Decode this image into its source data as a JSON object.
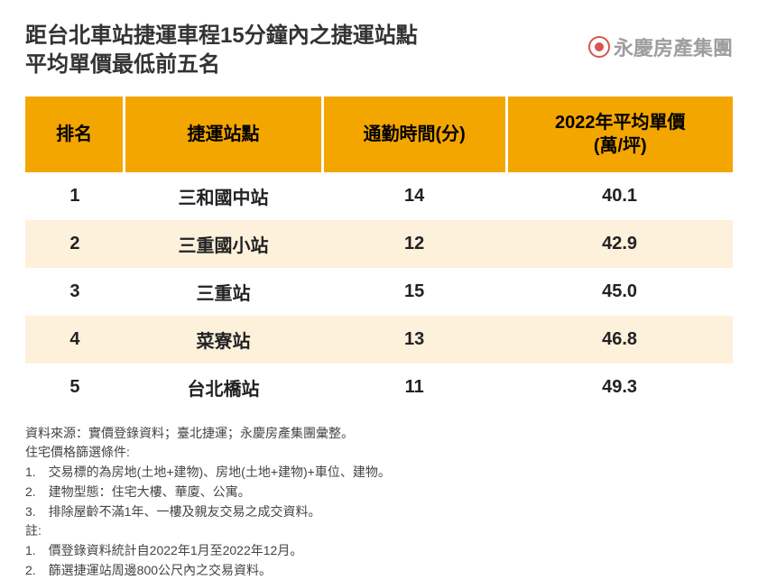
{
  "title_line1": "距台北車站捷運車程15分鐘內之捷運站點",
  "title_line2": "平均單價最低前五名",
  "brand_text": "永慶房產集團",
  "table": {
    "type": "table",
    "header_bg": "#f4a600",
    "even_row_bg": "#fdf1dc",
    "odd_row_bg": "#ffffff",
    "columns": [
      {
        "label": "排名",
        "width_pct": 14
      },
      {
        "label": "捷運站點",
        "width_pct": 28
      },
      {
        "label": "通勤時間(分)",
        "width_pct": 26
      },
      {
        "label": "2022年平均單價\n(萬/坪)",
        "width_pct": 32
      }
    ],
    "rows": [
      {
        "rank": "1",
        "station": "三和國中站",
        "commute": "14",
        "price": "40.1"
      },
      {
        "rank": "2",
        "station": "三重國小站",
        "commute": "12",
        "price": "42.9"
      },
      {
        "rank": "3",
        "station": "三重站",
        "commute": "15",
        "price": "45.0"
      },
      {
        "rank": "4",
        "station": "菜寮站",
        "commute": "13",
        "price": "46.8"
      },
      {
        "rank": "5",
        "station": "台北橋站",
        "commute": "11",
        "price": "49.3"
      }
    ]
  },
  "footer": {
    "source": "資料來源：實價登錄資料；臺北捷運；永慶房產集團彙整。",
    "filter_title": "住宅價格篩選條件:",
    "filter_1": "1.　交易標的為房地(土地+建物)、房地(土地+建物)+車位、建物。",
    "filter_2": "2.　建物型態：住宅大樓、華廈、公寓。",
    "filter_3": "3.　排除屋齡不滿1年、一樓及親友交易之成交資料。",
    "note_title": "註:",
    "note_1": "1.　價登錄資料統計自2022年1月至2022年12月。",
    "note_2": "2.　篩選捷運站周邊800公尺內之交易資料。"
  }
}
